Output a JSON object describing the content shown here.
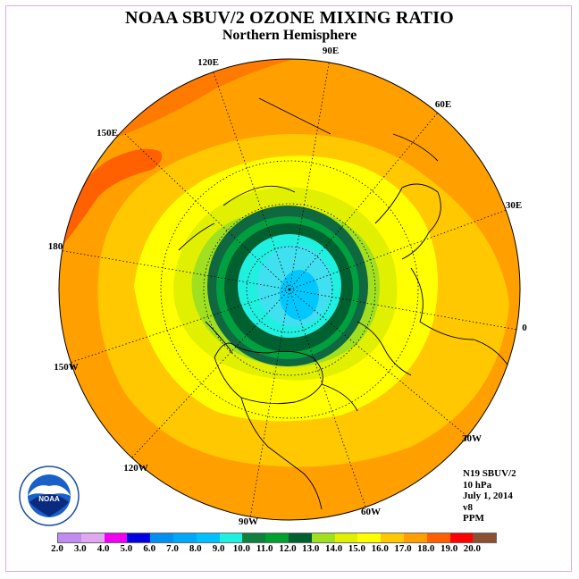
{
  "header": {
    "title": "NOAA SBUV/2 OZONE MIXING RATIO",
    "subtitle": "Northern Hemisphere"
  },
  "longitude_labels": [
    "90E",
    "60E",
    "30E",
    "0",
    "30W",
    "60W",
    "90W",
    "120W",
    "150W",
    "180",
    "150E",
    "120E"
  ],
  "info": {
    "satellite": "N19 SBUV/2",
    "pressure": "10 hPa",
    "date": "July 1, 2014",
    "version": "v8",
    "units": "PPM"
  },
  "logo": {
    "text": "NOAA",
    "icon": "noaa-logo-icon"
  },
  "colorbar": {
    "ticks": [
      "2.0",
      "3.0",
      "4.0",
      "5.0",
      "6.0",
      "7.0",
      "8.0",
      "9.0",
      "10.0",
      "11.0",
      "12.0",
      "13.0",
      "14.0",
      "15.0",
      "16.0",
      "17.0",
      "18.0",
      "19.0",
      "20.0"
    ],
    "colors": [
      "#c08cf0",
      "#e0a8f0",
      "#f000f0",
      "#0000e0",
      "#0090f0",
      "#00a8f8",
      "#00c0ff",
      "#20f0e0",
      "#108040",
      "#00a030",
      "#006030",
      "#a0e020",
      "#e0f000",
      "#ffff00",
      "#ffc800",
      "#ffa000",
      "#ff6000",
      "#ff0000",
      "#8c5030"
    ]
  }
}
